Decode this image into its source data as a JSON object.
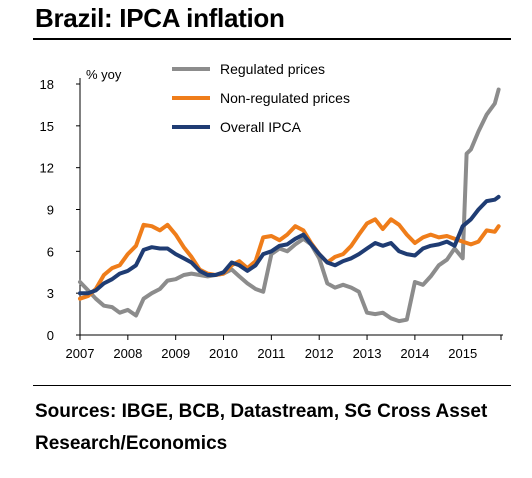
{
  "title": "Brazil: IPCA inflation",
  "sources": "Sources: IBGE, BCB, Datastream, SG Cross Asset Research/Economics",
  "chart_data": {
    "type": "line",
    "title": "Brazil: IPCA inflation",
    "ylabel": "% yoy",
    "xlabel": "",
    "ylim": [
      0,
      18
    ],
    "yticks": [
      0,
      3,
      6,
      9,
      12,
      15,
      18
    ],
    "xlim": [
      2007,
      2015.8
    ],
    "xticks": [
      "2007",
      "2008",
      "2009",
      "2010",
      "2011",
      "2012",
      "2013",
      "2014",
      "2015"
    ],
    "grid": false,
    "legend_position": "top",
    "series": [
      {
        "name": "Regulated prices",
        "color": "#8c8c8c",
        "x": [
          2007.0,
          2007.17,
          2007.33,
          2007.5,
          2007.67,
          2007.83,
          2008.0,
          2008.17,
          2008.33,
          2008.5,
          2008.67,
          2008.83,
          2009.0,
          2009.17,
          2009.33,
          2009.5,
          2009.67,
          2009.83,
          2010.0,
          2010.17,
          2010.33,
          2010.5,
          2010.67,
          2010.83,
          2011.0,
          2011.17,
          2011.33,
          2011.5,
          2011.67,
          2011.83,
          2012.0,
          2012.17,
          2012.33,
          2012.5,
          2012.67,
          2012.83,
          2013.0,
          2013.17,
          2013.33,
          2013.5,
          2013.67,
          2013.83,
          2014.0,
          2014.17,
          2014.33,
          2014.5,
          2014.67,
          2014.83,
          2015.0,
          2015.08,
          2015.17,
          2015.33,
          2015.5,
          2015.67,
          2015.75
        ],
        "values": [
          3.8,
          3.2,
          2.6,
          2.1,
          2.0,
          1.6,
          1.8,
          1.4,
          2.6,
          3.0,
          3.3,
          3.9,
          4.0,
          4.3,
          4.4,
          4.3,
          4.2,
          4.3,
          4.4,
          4.7,
          4.2,
          3.7,
          3.3,
          3.1,
          5.8,
          6.2,
          6.0,
          6.5,
          6.9,
          6.5,
          5.5,
          3.7,
          3.4,
          3.6,
          3.4,
          3.1,
          1.6,
          1.5,
          1.6,
          1.2,
          1.0,
          1.1,
          3.8,
          3.6,
          4.2,
          5.0,
          5.4,
          6.2,
          5.5,
          13.0,
          13.3,
          14.6,
          15.8,
          16.6,
          17.6
        ]
      },
      {
        "name": "Non-regulated prices",
        "color": "#ef7d1a",
        "x": [
          2007.0,
          2007.17,
          2007.33,
          2007.5,
          2007.67,
          2007.83,
          2008.0,
          2008.17,
          2008.33,
          2008.5,
          2008.67,
          2008.83,
          2009.0,
          2009.17,
          2009.33,
          2009.5,
          2009.67,
          2009.83,
          2010.0,
          2010.17,
          2010.33,
          2010.5,
          2010.67,
          2010.83,
          2011.0,
          2011.17,
          2011.33,
          2011.5,
          2011.67,
          2011.83,
          2012.0,
          2012.17,
          2012.33,
          2012.5,
          2012.67,
          2012.83,
          2013.0,
          2013.17,
          2013.33,
          2013.5,
          2013.67,
          2013.83,
          2014.0,
          2014.17,
          2014.33,
          2014.5,
          2014.67,
          2014.83,
          2015.0,
          2015.17,
          2015.33,
          2015.5,
          2015.67,
          2015.75
        ],
        "values": [
          2.6,
          2.8,
          3.3,
          4.3,
          4.8,
          5.0,
          5.8,
          6.4,
          7.9,
          7.8,
          7.5,
          7.9,
          7.2,
          6.3,
          5.6,
          4.7,
          4.4,
          4.3,
          4.4,
          5.0,
          5.3,
          4.8,
          5.3,
          7.0,
          7.1,
          6.8,
          7.2,
          7.8,
          7.5,
          6.6,
          5.8,
          5.2,
          5.6,
          5.8,
          6.4,
          7.2,
          8.0,
          8.3,
          7.6,
          8.3,
          7.9,
          7.2,
          6.6,
          7.0,
          7.2,
          7.0,
          7.1,
          6.9,
          6.7,
          6.5,
          6.7,
          7.5,
          7.4,
          7.8
        ]
      },
      {
        "name": "Overall IPCA",
        "color": "#1f3c73",
        "x": [
          2007.0,
          2007.17,
          2007.33,
          2007.5,
          2007.67,
          2007.83,
          2008.0,
          2008.17,
          2008.33,
          2008.5,
          2008.67,
          2008.83,
          2009.0,
          2009.17,
          2009.33,
          2009.5,
          2009.67,
          2009.83,
          2010.0,
          2010.17,
          2010.33,
          2010.5,
          2010.67,
          2010.83,
          2011.0,
          2011.17,
          2011.33,
          2011.5,
          2011.67,
          2011.83,
          2012.0,
          2012.17,
          2012.33,
          2012.5,
          2012.67,
          2012.83,
          2013.0,
          2013.17,
          2013.33,
          2013.5,
          2013.67,
          2013.83,
          2014.0,
          2014.17,
          2014.33,
          2014.5,
          2014.67,
          2014.83,
          2015.0,
          2015.17,
          2015.33,
          2015.5,
          2015.67,
          2015.75
        ],
        "values": [
          3.0,
          3.0,
          3.2,
          3.7,
          4.0,
          4.4,
          4.6,
          5.0,
          6.1,
          6.3,
          6.2,
          6.2,
          5.8,
          5.5,
          5.2,
          4.6,
          4.3,
          4.3,
          4.5,
          5.2,
          5.0,
          4.6,
          5.0,
          5.8,
          6.0,
          6.4,
          6.5,
          6.9,
          7.2,
          6.5,
          5.8,
          5.2,
          5.0,
          5.3,
          5.5,
          5.8,
          6.2,
          6.6,
          6.4,
          6.6,
          6.0,
          5.8,
          5.7,
          6.2,
          6.4,
          6.5,
          6.7,
          6.4,
          7.8,
          8.3,
          9.0,
          9.6,
          9.7,
          9.9
        ]
      }
    ]
  }
}
